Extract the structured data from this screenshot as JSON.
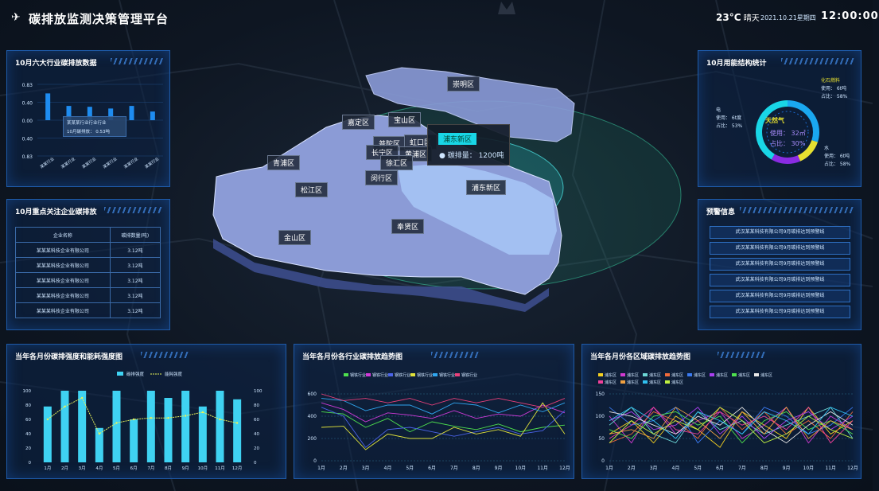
{
  "header": {
    "title": "碳排放监测决策管理平台",
    "temperature": "23°C",
    "weather": "晴天",
    "date": "2021.10.21星期四",
    "time": "12:00:00"
  },
  "panels": {
    "industry": {
      "title": "10月六大行业碳排放数据",
      "tooltip_title": "某某某行业行业行业",
      "tooltip_value": "10月碳排放： 0.53吨"
    },
    "energy": {
      "title": "10月用能结构统计",
      "gas_label": "天然气",
      "gas_use": "使用： 32㎡",
      "gas_ratio": "占比： 30%",
      "fossil_label": "化石燃料",
      "fossil_use": "使用： 6t吨",
      "fossil_ratio": "占比： 58%",
      "elec_label": "电",
      "elec_use": "使用： 6t度",
      "elec_ratio": "占比： 53%",
      "water_label": "水",
      "water_use": "使用： 6t吨",
      "water_ratio": "占比： 58%"
    },
    "companies": {
      "title": "10月重点关注企业碳排放",
      "col1": "企业名称",
      "col2": "碳排数量(吨)",
      "rows": [
        [
          "某某某科技企业有限公司",
          "3.12吨"
        ],
        [
          "某某某科技企业有限公司",
          "3.12吨"
        ],
        [
          "某某某科技企业有限公司",
          "3.12吨"
        ],
        [
          "某某某科技企业有限公司",
          "3.12吨"
        ],
        [
          "某某某科技企业有限公司",
          "3.12吨"
        ]
      ]
    },
    "alerts": {
      "title": "预警信息",
      "items": [
        "武汉某某科技有限公司9月碳排达到预警线",
        "武汉某某科技有限公司9月碳排达到预警线",
        "武汉某某科技有限公司9月碳排达到预警线",
        "武汉某某科技有限公司9月碳排达到预警线",
        "武汉某某科技有限公司9月碳排达到预警线",
        "武汉某某科技有限公司9月碳排达到预警线"
      ]
    },
    "intensity": {
      "title": "当年各月份碳排强度和能耗强度图"
    },
    "industry_trend": {
      "title": "当年各月份各行业碳排放趋势图"
    },
    "district_trend": {
      "title": "当年各月份各区域碳排放趋势图"
    }
  },
  "map": {
    "tooltip_title": "浦东新区",
    "tooltip_value": "● 碳排量： 1200吨",
    "districts": [
      "崇明区",
      "宝山区",
      "嘉定区",
      "普陀区",
      "虹口区",
      "长宁区",
      "黄浦区",
      "徐汇区",
      "青浦区",
      "闵行区",
      "松江区",
      "浦东新区",
      "奉贤区",
      "金山区"
    ]
  },
  "chart_data": [
    {
      "type": "bar",
      "id": "industry",
      "categories": [
        "某某行业",
        "某某行业",
        "某某行业",
        "某某行业",
        "某某行业",
        "某某行业"
      ],
      "values": [
        0.62,
        0.33,
        0.31,
        0.27,
        0.33,
        0.2
      ],
      "ylim": [
        -0.83,
        0.83
      ],
      "yticks": [
        "0.83",
        "0.40",
        "0.00",
        "0.40",
        "0.83"
      ]
    },
    {
      "type": "bar",
      "id": "intensity",
      "categories": [
        "1月",
        "2月",
        "3月",
        "4月",
        "5月",
        "6月",
        "7月",
        "8月",
        "9月",
        "10月",
        "11月",
        "12月"
      ],
      "series": [
        {
          "name": "碳排强度",
          "values": [
            78,
            100,
            100,
            48,
            100,
            60,
            100,
            90,
            100,
            78,
            100,
            88
          ]
        },
        {
          "name": "能耗强度",
          "values": [
            60,
            78,
            90,
            40,
            55,
            60,
            62,
            62,
            65,
            70,
            60,
            55
          ]
        }
      ],
      "ylim": [
        0,
        100
      ],
      "yticks": [
        "0",
        "20",
        "40",
        "60",
        "80",
        "100"
      ],
      "y2ticks": [
        "0",
        "20",
        "40",
        "60",
        "80",
        "100"
      ],
      "colors": [
        "#3fd2f2",
        "#e8f25a"
      ]
    },
    {
      "type": "line",
      "id": "industry_trend",
      "categories": [
        "1月",
        "2月",
        "3月",
        "4月",
        "5月",
        "6月",
        "7月",
        "8月",
        "9月",
        "10月",
        "11月",
        "12月"
      ],
      "ylim": [
        0,
        600
      ],
      "yticks": [
        "0",
        "200",
        "400",
        "600"
      ],
      "series": [
        {
          "name": "钢铁行业",
          "color": "#4ee04e",
          "values": [
            440,
            420,
            300,
            380,
            260,
            350,
            310,
            280,
            330,
            260,
            300,
            320
          ]
        },
        {
          "name": "钢铁行业",
          "color": "#d03ad8",
          "values": [
            520,
            460,
            350,
            430,
            410,
            380,
            450,
            380,
            420,
            400,
            500,
            430
          ]
        },
        {
          "name": "钢铁行业",
          "color": "#4a63e8",
          "values": [
            480,
            400,
            120,
            280,
            300,
            260,
            220,
            260,
            300,
            240,
            270,
            450
          ]
        },
        {
          "name": "钢铁行业",
          "color": "#e0e23a",
          "values": [
            300,
            310,
            100,
            240,
            200,
            200,
            300,
            240,
            280,
            220,
            520,
            240
          ]
        },
        {
          "name": "钢铁行业",
          "color": "#2fa6f0",
          "values": [
            560,
            540,
            450,
            500,
            500,
            420,
            520,
            500,
            430,
            500,
            440,
            520
          ]
        },
        {
          "name": "钢铁行业",
          "color": "#e8407a",
          "values": [
            600,
            540,
            560,
            520,
            560,
            500,
            560,
            520,
            560,
            520,
            480,
            560
          ]
        }
      ]
    },
    {
      "type": "line",
      "id": "district_trend",
      "categories": [
        "1月",
        "2月",
        "3月",
        "4月",
        "5月",
        "6月",
        "7月",
        "8月",
        "9月",
        "10月",
        "11月",
        "12月"
      ],
      "ylim": [
        0,
        150
      ],
      "yticks": [
        "0",
        "50",
        "100",
        "150"
      ],
      "series": [
        {
          "name": "浦东区",
          "color": "#f5d020",
          "values": [
            60,
            90,
            40,
            100,
            70,
            30,
            110,
            80,
            50,
            120,
            60,
            90
          ]
        },
        {
          "name": "浦东区",
          "color": "#d13ad1",
          "values": [
            100,
            40,
            120,
            60,
            90,
            110,
            50,
            80,
            120,
            40,
            100,
            70
          ]
        },
        {
          "name": "浦东区",
          "color": "#6cd6d6",
          "values": [
            80,
            120,
            60,
            40,
            110,
            70,
            90,
            60,
            80,
            100,
            120,
            50
          ]
        },
        {
          "name": "浦东区",
          "color": "#f06a3a",
          "values": [
            40,
            60,
            110,
            90,
            50,
            120,
            70,
            110,
            60,
            90,
            50,
            110
          ]
        },
        {
          "name": "浦东区",
          "color": "#3a7af0",
          "values": [
            120,
            80,
            90,
            120,
            40,
            90,
            60,
            120,
            100,
            60,
            80,
            120
          ]
        },
        {
          "name": "浦东区",
          "color": "#aa40f0",
          "values": [
            90,
            110,
            70,
            80,
            120,
            60,
            100,
            50,
            90,
            110,
            70,
            100
          ]
        },
        {
          "name": "浦东区",
          "color": "#4ee04e",
          "values": [
            70,
            50,
            100,
            110,
            80,
            100,
            40,
            90,
            110,
            70,
            90,
            60
          ]
        },
        {
          "name": "浦东区",
          "color": "#e8e8e8",
          "values": [
            110,
            100,
            80,
            60,
            100,
            80,
            120,
            70,
            40,
            80,
            110,
            80
          ]
        },
        {
          "name": "浦东区",
          "color": "#f0409a",
          "values": [
            50,
            80,
            120,
            70,
            60,
            110,
            80,
            100,
            70,
            120,
            40,
            90
          ]
        },
        {
          "name": "浦东区",
          "color": "#f0a040",
          "values": [
            60,
            70,
            50,
            120,
            90,
            50,
            110,
            60,
            120,
            50,
            90,
            70
          ]
        },
        {
          "name": "浦东区",
          "color": "#30c0f0",
          "values": [
            90,
            120,
            90,
            50,
            110,
            90,
            60,
            110,
            90,
            60,
            120,
            100
          ]
        },
        {
          "name": "浦东区",
          "color": "#c0f040",
          "values": [
            40,
            90,
            60,
            90,
            70,
            120,
            90,
            40,
            60,
            100,
            70,
            50
          ]
        }
      ]
    }
  ]
}
